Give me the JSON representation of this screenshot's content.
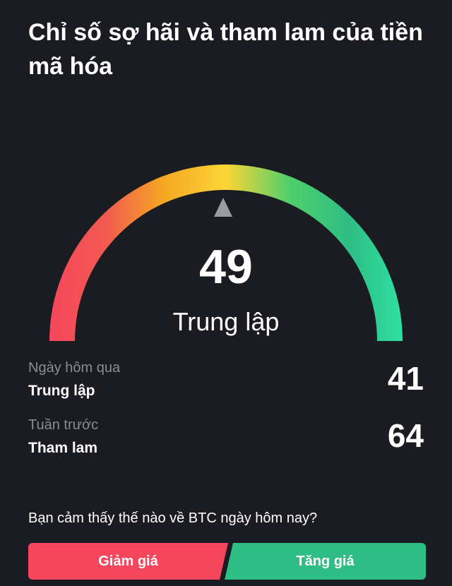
{
  "page": {
    "title": "Chỉ số sợ hãi và tham lam của tiền mã hóa"
  },
  "gauge": {
    "value": "49",
    "label": "Trung lập",
    "colors": [
      "#f6465d",
      "#f0b90b",
      "#fcd535",
      "#2ebd85",
      "#2fe0a3"
    ],
    "pointer_color": "#9a9ca5"
  },
  "history": [
    {
      "label": "Ngày hôm qua",
      "status": "Trung lập",
      "value": "41"
    },
    {
      "label": "Tuần trước",
      "status": "Tham lam",
      "value": "64"
    }
  ],
  "vote": {
    "question": "Bạn cảm thấy thế nào về BTC ngày hôm nay?",
    "down_label": "Giảm giá",
    "up_label": "Tăng giá",
    "down_color": "#f6465d",
    "up_color": "#2ebd85"
  }
}
